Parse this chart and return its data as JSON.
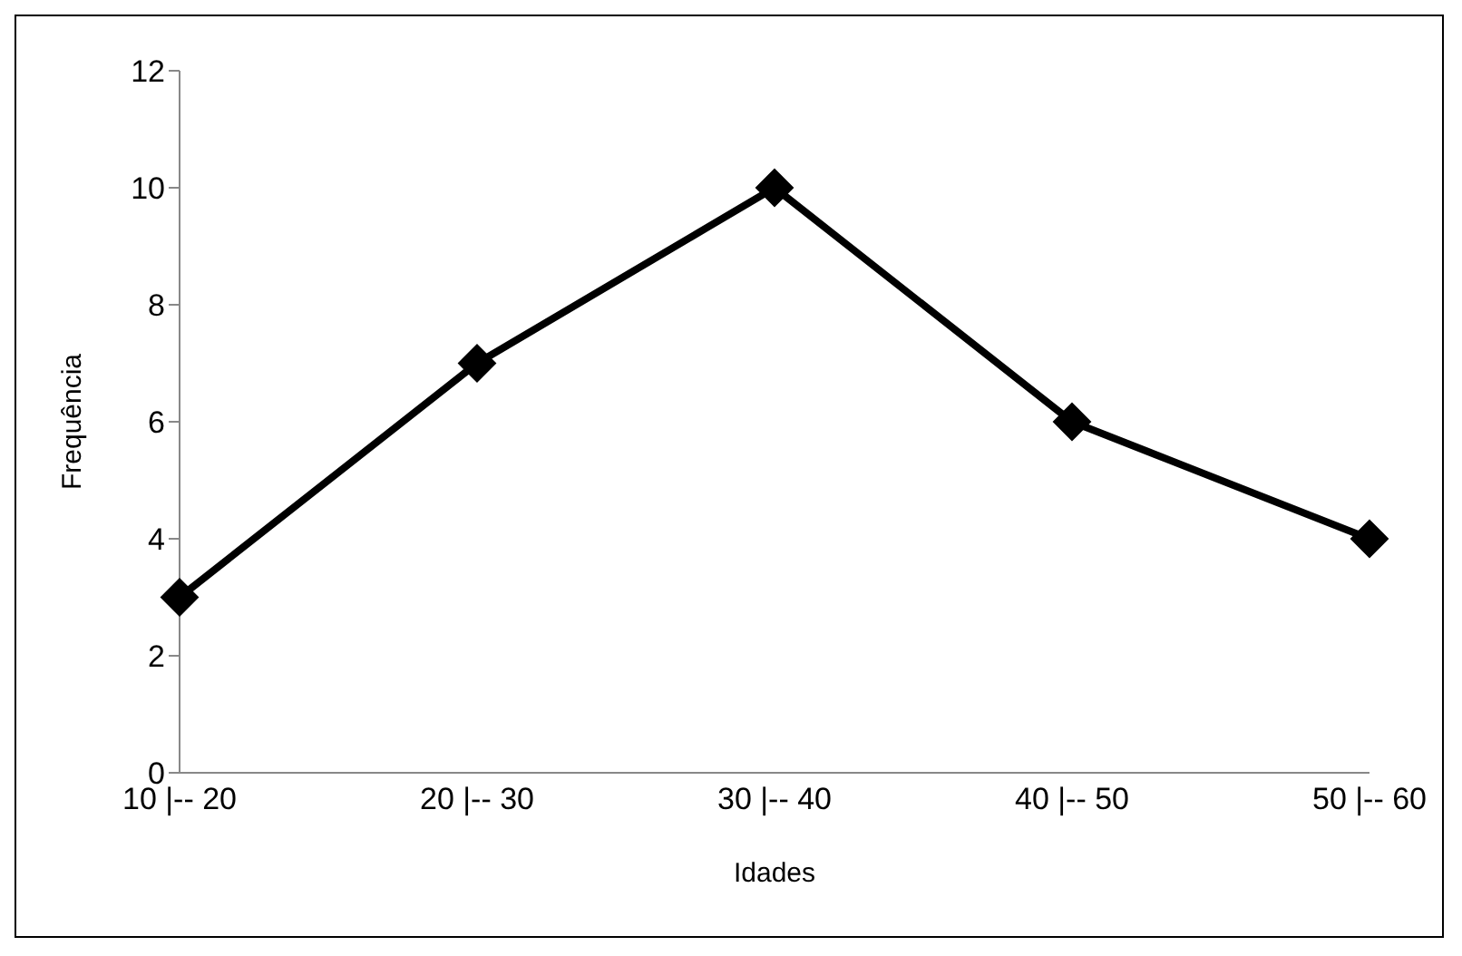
{
  "chart_data": {
    "type": "line",
    "xlabel": "Idades",
    "ylabel": "Frequência",
    "categories": [
      "10 |-- 20",
      "20 |-- 30",
      "30 |-- 40",
      "40 |-- 50",
      "50 |-- 60"
    ],
    "series": [
      {
        "color": "#000000",
        "values": [
          3,
          7,
          10,
          6,
          4
        ]
      }
    ],
    "ylim": [
      0,
      12
    ],
    "yticks": [
      0,
      2,
      4,
      6,
      8,
      10,
      12
    ],
    "grid": false,
    "legend": false,
    "marker": "diamond",
    "line_style": "solid"
  }
}
